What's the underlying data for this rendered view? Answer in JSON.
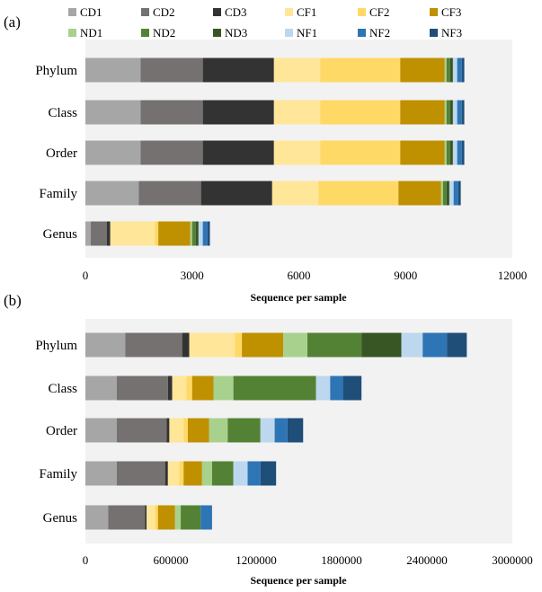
{
  "series_names": [
    "CD1",
    "CD2",
    "CD3",
    "CF1",
    "CF2",
    "CF3",
    "ND1",
    "ND2",
    "ND3",
    "NF1",
    "NF2",
    "NF3"
  ],
  "colors": {
    "CD1": "#a6a6a6",
    "CD2": "#767171",
    "CD3": "#333333",
    "CF1": "#ffe699",
    "CF2": "#ffd966",
    "CF3": "#bf9000",
    "ND1": "#a9d18e",
    "ND2": "#548235",
    "ND3": "#375623",
    "NF1": "#bdd7ee",
    "NF2": "#2e75b6",
    "NF3": "#1f4e79",
    "plot_bg": "#f2f2f2"
  },
  "chart_data": [
    {
      "type": "bar",
      "orientation": "horizontal",
      "stacked": true,
      "panel_label": "(a)",
      "xlabel": "Sequence per sample",
      "xlim": [
        0,
        12000
      ],
      "xticks": [
        "0",
        "3000",
        "6000",
        "9000",
        "12000"
      ],
      "categories": [
        "Phylum",
        "Class",
        "Order",
        "Family",
        "Genus"
      ],
      "series": [
        {
          "name": "CD1",
          "values": [
            1550,
            1550,
            1550,
            1500,
            150
          ]
        },
        {
          "name": "CD2",
          "values": [
            1750,
            1750,
            1750,
            1750,
            450
          ]
        },
        {
          "name": "CD3",
          "values": [
            2000,
            2000,
            2000,
            2000,
            100
          ]
        },
        {
          "name": "CF1",
          "values": [
            1300,
            1300,
            1300,
            1300,
            1250
          ]
        },
        {
          "name": "CF2",
          "values": [
            2250,
            2250,
            2250,
            2250,
            100
          ]
        },
        {
          "name": "CF3",
          "values": [
            1250,
            1250,
            1250,
            1200,
            900
          ]
        },
        {
          "name": "ND1",
          "values": [
            50,
            50,
            50,
            50,
            50
          ]
        },
        {
          "name": "ND2",
          "values": [
            100,
            100,
            100,
            100,
            100
          ]
        },
        {
          "name": "ND3",
          "values": [
            80,
            80,
            80,
            80,
            80
          ]
        },
        {
          "name": "NF1",
          "values": [
            120,
            120,
            120,
            120,
            120
          ]
        },
        {
          "name": "NF2",
          "values": [
            130,
            130,
            130,
            130,
            130
          ]
        },
        {
          "name": "NF3",
          "values": [
            70,
            70,
            70,
            70,
            70
          ]
        }
      ]
    },
    {
      "type": "bar",
      "orientation": "horizontal",
      "stacked": true,
      "panel_label": "(b)",
      "xlabel": "Sequence per sample",
      "xlim": [
        0,
        3000000
      ],
      "xticks": [
        "0",
        "600000",
        "1200000",
        "1800000",
        "2400000",
        "3000000"
      ],
      "categories": [
        "Phylum",
        "Class",
        "Order",
        "Family",
        "Genus"
      ],
      "series": [
        {
          "name": "CD1",
          "values": [
            280000,
            220000,
            220000,
            220000,
            160000
          ]
        },
        {
          "name": "CD2",
          "values": [
            400000,
            360000,
            350000,
            340000,
            260000
          ]
        },
        {
          "name": "CD3",
          "values": [
            50000,
            30000,
            20000,
            20000,
            10000
          ]
        },
        {
          "name": "CF1",
          "values": [
            320000,
            100000,
            100000,
            80000,
            60000
          ]
        },
        {
          "name": "CF2",
          "values": [
            50000,
            40000,
            30000,
            30000,
            20000
          ]
        },
        {
          "name": "CF3",
          "values": [
            290000,
            150000,
            150000,
            130000,
            120000
          ]
        },
        {
          "name": "ND1",
          "values": [
            170000,
            140000,
            130000,
            70000,
            40000
          ]
        },
        {
          "name": "ND2",
          "values": [
            380000,
            580000,
            230000,
            150000,
            140000
          ]
        },
        {
          "name": "ND3",
          "values": [
            280000,
            0,
            0,
            0,
            0
          ]
        },
        {
          "name": "NF1",
          "values": [
            150000,
            100000,
            100000,
            100000,
            0
          ]
        },
        {
          "name": "NF2",
          "values": [
            170000,
            90000,
            90000,
            90000,
            80000
          ]
        },
        {
          "name": "NF3",
          "values": [
            140000,
            130000,
            110000,
            110000,
            0
          ]
        }
      ]
    }
  ]
}
